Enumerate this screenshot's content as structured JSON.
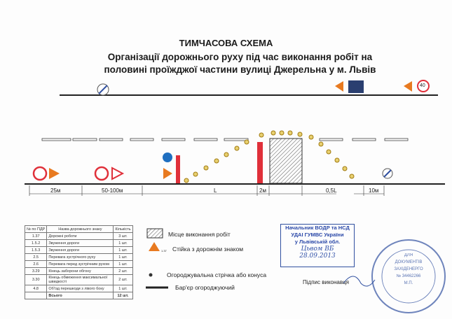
{
  "title": {
    "line1": "ТИМЧАСОВА СХЕМА",
    "line2": "Організації дорожнього руху під час виконання робіт на",
    "line3": "половині проїжджої частини вулиці Джерельна у м. Львів"
  },
  "dimensions": [
    "25м",
    "50-100м",
    "L",
    "2м",
    "0,5L",
    "10м"
  ],
  "signs": {
    "speed_limit": "40",
    "codes": [
      "3.29",
      "1.37",
      "3.30",
      "1.5.2",
      "2.5",
      "2.6",
      "1.5.3",
      "4.8",
      "1.37"
    ]
  },
  "table": {
    "headers": [
      "№ по ПДР",
      "Назва дорожнього знаку",
      "Кількість"
    ],
    "rows": [
      [
        "1.37",
        "Дорожні роботи",
        "3 шт."
      ],
      [
        "1.5.2",
        "Звуження дороги",
        "1 шт."
      ],
      [
        "1.5.3",
        "Звуження дороги",
        "1 шт."
      ],
      [
        "2.5",
        "Перевага зустрічного руху",
        "1 шт."
      ],
      [
        "2.6",
        "Перевага перед зустрічним рухом",
        "1 шт."
      ],
      [
        "3.29",
        "Кінець заборони обгону",
        "2 шт."
      ],
      [
        "3.30",
        "Кінець обмеження максимальної швидкості",
        "2 шт."
      ],
      [
        "4.8",
        "Об'їзд перешкоди з лівого боку",
        "1 шт."
      ]
    ],
    "total_label": "Всього",
    "total_value": "12 шт."
  },
  "legend": {
    "work_area": "Місце виконання робіт",
    "sign_post": "Стійка з дорожнім знаком",
    "post_code": "1.37",
    "tape": "Огороджувальна стрічка або конуса",
    "barrier": "Бар'єр огороджуючий"
  },
  "approval": {
    "line1": "Начальник ВОДР та НСД",
    "line2": "УДАІ ГУМВС України",
    "line3": "у Львівській обл.",
    "signature": "Цьвом ВБ",
    "date": "28.09.2013"
  },
  "signature_label": "Підпис виконавця",
  "stamp_text": [
    "ДЛЯ",
    "ДОКУМЕНТІВ",
    "ЗАХІДЕНЕРГО",
    "№ 34462266",
    "М.П."
  ],
  "colors": {
    "sign_red": "#e0303a",
    "sign_orange": "#e87a20",
    "sign_blue": "#1f6fc0",
    "cone": "#c8a020",
    "stamp_blue": "#3050a0"
  }
}
